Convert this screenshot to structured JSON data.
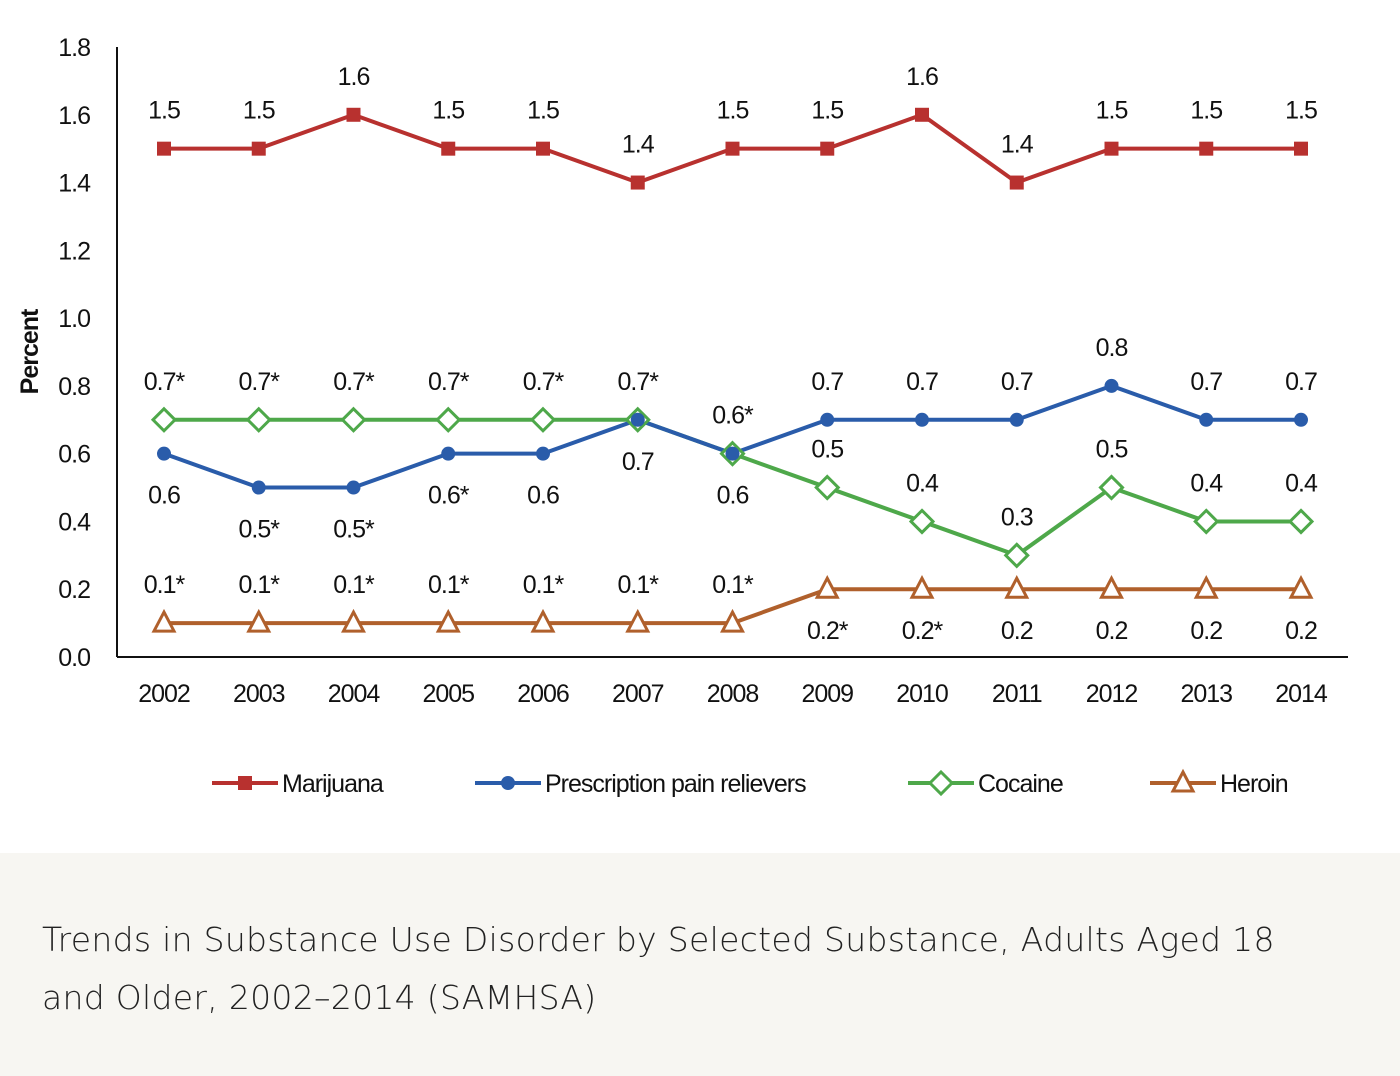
{
  "chart_data": {
    "type": "line",
    "title": "",
    "xlabel": "",
    "ylabel": "Percent",
    "ylim": [
      0,
      1.8
    ],
    "yticks": [
      "0.0",
      "0.2",
      "0.4",
      "0.6",
      "0.8",
      "1.0",
      "1.2",
      "1.4",
      "1.6",
      "1.8"
    ],
    "x": [
      "2002",
      "2003",
      "2004",
      "2005",
      "2006",
      "2007",
      "2008",
      "2009",
      "2010",
      "2011",
      "2012",
      "2013",
      "2014"
    ],
    "grid": false,
    "legend_position": "bottom",
    "series": [
      {
        "name": "Marijuana",
        "color": "#b8312f",
        "marker": "square",
        "values": [
          1.5,
          1.5,
          1.6,
          1.5,
          1.5,
          1.4,
          1.5,
          1.5,
          1.6,
          1.4,
          1.5,
          1.5,
          1.5
        ],
        "labels": [
          "1.5",
          "1.5",
          "1.6",
          "1.5",
          "1.5",
          "1.4",
          "1.5",
          "1.5",
          "1.6",
          "1.4",
          "1.5",
          "1.5",
          "1.5"
        ],
        "label_pos": [
          "above",
          "above",
          "above",
          "above",
          "above",
          "above",
          "above",
          "above",
          "above",
          "above",
          "above",
          "above",
          "above"
        ]
      },
      {
        "name": "Prescription pain relievers",
        "color": "#2a5caa",
        "marker": "circle",
        "values": [
          0.6,
          0.5,
          0.5,
          0.6,
          0.6,
          0.7,
          0.6,
          0.7,
          0.7,
          0.7,
          0.8,
          0.7,
          0.7
        ],
        "labels": [
          "0.6",
          "0.5*",
          "0.5*",
          "0.6*",
          "0.6",
          "0.7",
          "0.6",
          "0.7",
          "0.7",
          "0.7",
          "0.8",
          "0.7",
          "0.7"
        ],
        "label_pos": [
          "below",
          "below",
          "below",
          "below",
          "below",
          "below",
          "below",
          "above",
          "above",
          "above",
          "above",
          "above",
          "above"
        ]
      },
      {
        "name": "Cocaine",
        "color": "#4ea84a",
        "marker": "diamond",
        "values": [
          0.7,
          0.7,
          0.7,
          0.7,
          0.7,
          0.7,
          0.6,
          0.5,
          0.4,
          0.3,
          0.5,
          0.4,
          0.4
        ],
        "labels": [
          "0.7*",
          "0.7*",
          "0.7*",
          "0.7*",
          "0.7*",
          "0.7*",
          "0.6*",
          "0.5",
          "0.4",
          "0.3",
          "0.5",
          "0.4",
          "0.4"
        ],
        "label_pos": [
          "above",
          "above",
          "above",
          "above",
          "above",
          "above",
          "above",
          "above",
          "above",
          "above",
          "above",
          "above",
          "above"
        ]
      },
      {
        "name": "Heroin",
        "color": "#b0602c",
        "marker": "triangle",
        "values": [
          0.1,
          0.1,
          0.1,
          0.1,
          0.1,
          0.1,
          0.1,
          0.2,
          0.2,
          0.2,
          0.2,
          0.2,
          0.2
        ],
        "labels": [
          "0.1*",
          "0.1*",
          "0.1*",
          "0.1*",
          "0.1*",
          "0.1*",
          "0.1*",
          "0.2*",
          "0.2*",
          "0.2",
          "0.2",
          "0.2",
          "0.2"
        ],
        "label_pos": [
          "above",
          "above",
          "above",
          "above",
          "above",
          "above",
          "above",
          "below",
          "below",
          "below",
          "below",
          "below",
          "below"
        ]
      }
    ]
  },
  "caption": "Trends in Substance Use Disorder by Selected Substance, Adults Aged 18 and Older, 2002–2014 (SAMHSA)"
}
